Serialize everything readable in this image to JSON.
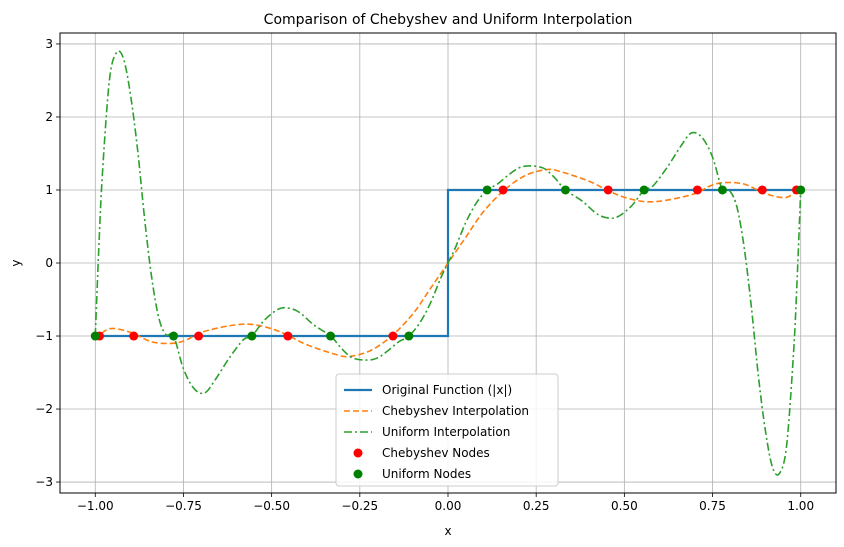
{
  "chart_data": {
    "type": "line",
    "title": "Comparison of Chebyshev and Uniform Interpolation",
    "xlabel": "x",
    "ylabel": "y",
    "xlim": [
      -1.1,
      1.1
    ],
    "ylim": [
      -3.15,
      3.15
    ],
    "xticks": [
      -1.0,
      -0.75,
      -0.5,
      -0.25,
      0.0,
      0.25,
      0.5,
      0.75,
      1.0
    ],
    "xtick_labels": [
      "−1.00",
      "−0.75",
      "−0.50",
      "−0.25",
      "0.00",
      "0.25",
      "0.50",
      "0.75",
      "1.00"
    ],
    "yticks": [
      -3,
      -2,
      -1,
      0,
      1,
      2,
      3
    ],
    "ytick_labels": [
      "−3",
      "−2",
      "−1",
      "0",
      "1",
      "2",
      "3"
    ],
    "grid": true,
    "legend_position": "bottom-center",
    "series": [
      {
        "name": "Original Function (|x|)",
        "kind": "line",
        "style": "solid",
        "color": "#1f77b4",
        "x": [
          -1.0,
          0.0,
          0.0,
          1.0
        ],
        "y": [
          -1,
          -1,
          1,
          1
        ]
      },
      {
        "name": "Chebyshev Interpolation",
        "kind": "line",
        "style": "dashed",
        "color": "#ff7f0e",
        "x": [
          -1.0,
          -0.96,
          -0.9,
          -0.84,
          -0.78,
          -0.74,
          -0.7,
          -0.62,
          -0.56,
          -0.5,
          -0.45,
          -0.4,
          -0.32,
          -0.28,
          -0.22,
          -0.16,
          -0.1,
          -0.05,
          0.0,
          0.05,
          0.1,
          0.16,
          0.22,
          0.28,
          0.32,
          0.4,
          0.45,
          0.5,
          0.56,
          0.62,
          0.7,
          0.74,
          0.78,
          0.84,
          0.9,
          0.96,
          1.0
        ],
        "y": [
          -1.05,
          -0.9,
          -0.95,
          -1.08,
          -1.1,
          -1.05,
          -0.95,
          -0.86,
          -0.84,
          -0.9,
          -1.0,
          -1.12,
          -1.25,
          -1.28,
          -1.2,
          -1.0,
          -0.7,
          -0.35,
          0.0,
          0.35,
          0.7,
          1.0,
          1.2,
          1.28,
          1.25,
          1.12,
          1.0,
          0.9,
          0.84,
          0.86,
          0.95,
          1.05,
          1.1,
          1.08,
          0.95,
          0.9,
          1.05
        ]
      },
      {
        "name": "Uniform Interpolation",
        "kind": "line",
        "style": "dashdot",
        "color": "#2ca02c",
        "x": [
          -1.0,
          -0.99,
          -0.98,
          -0.96,
          -0.94,
          -0.92,
          -0.9,
          -0.88,
          -0.86,
          -0.84,
          -0.82,
          -0.8,
          -0.778,
          -0.75,
          -0.72,
          -0.69,
          -0.66,
          -0.62,
          -0.58,
          -0.556,
          -0.52,
          -0.48,
          -0.45,
          -0.42,
          -0.38,
          -0.333,
          -0.3,
          -0.27,
          -0.23,
          -0.2,
          -0.17,
          -0.14,
          -0.111,
          -0.08,
          -0.05,
          -0.02,
          0.0,
          0.02,
          0.05,
          0.08,
          0.111,
          0.14,
          0.17,
          0.2,
          0.23,
          0.27,
          0.3,
          0.333,
          0.38,
          0.42,
          0.45,
          0.48,
          0.52,
          0.556,
          0.58,
          0.62,
          0.66,
          0.69,
          0.72,
          0.75,
          0.778,
          0.8,
          0.82,
          0.84,
          0.86,
          0.88,
          0.9,
          0.92,
          0.94,
          0.96,
          0.98,
          0.99,
          1.0
        ],
        "y": [
          -1.0,
          0.2,
          1.2,
          2.5,
          2.88,
          2.8,
          2.3,
          1.55,
          0.6,
          -0.2,
          -0.75,
          -0.98,
          -1.0,
          -1.45,
          -1.72,
          -1.78,
          -1.6,
          -1.3,
          -1.05,
          -1.0,
          -0.78,
          -0.63,
          -0.62,
          -0.68,
          -0.85,
          -1.0,
          -1.18,
          -1.3,
          -1.33,
          -1.3,
          -1.2,
          -1.08,
          -1.0,
          -0.82,
          -0.55,
          -0.2,
          0.0,
          0.2,
          0.55,
          0.82,
          1.0,
          1.08,
          1.2,
          1.3,
          1.33,
          1.3,
          1.18,
          1.0,
          0.85,
          0.68,
          0.62,
          0.63,
          0.78,
          1.0,
          1.05,
          1.3,
          1.6,
          1.78,
          1.72,
          1.45,
          1.0,
          0.98,
          0.75,
          0.2,
          -0.6,
          -1.55,
          -2.3,
          -2.8,
          -2.88,
          -2.5,
          -1.2,
          -0.2,
          1.0
        ]
      },
      {
        "name": "Chebyshev Nodes",
        "kind": "scatter",
        "color": "#ff0000",
        "x": [
          -0.988,
          -0.891,
          -0.707,
          -0.454,
          -0.156,
          0.156,
          0.454,
          0.707,
          0.891,
          0.988
        ],
        "y": [
          -1,
          -1,
          -1,
          -1,
          -1,
          1,
          1,
          1,
          1,
          1
        ]
      },
      {
        "name": "Uniform Nodes",
        "kind": "scatter",
        "color": "#008000",
        "x": [
          -1.0,
          -0.778,
          -0.556,
          -0.333,
          -0.111,
          0.111,
          0.333,
          0.556,
          0.778,
          1.0
        ],
        "y": [
          -1,
          -1,
          -1,
          -1,
          -1,
          1,
          1,
          1,
          1,
          1
        ]
      }
    ]
  }
}
